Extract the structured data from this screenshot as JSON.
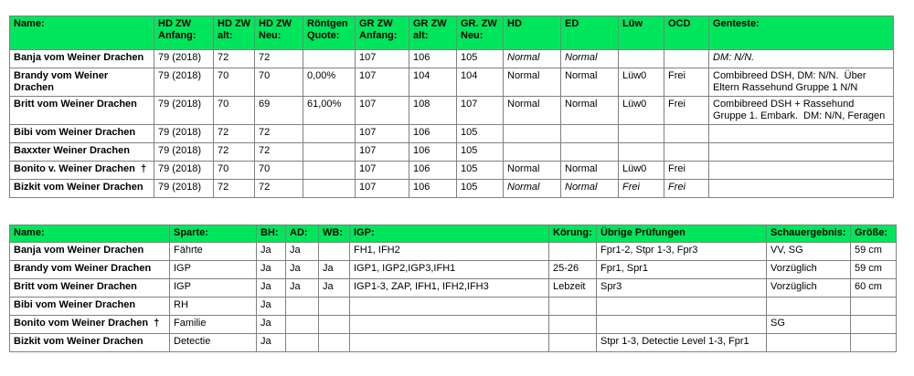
{
  "colors": {
    "header_bg": "#00E65C",
    "border": "#808080",
    "text": "#000000"
  },
  "table1": {
    "columns": [
      "Name:",
      "HD ZW Anfang:",
      "HD ZW alt:",
      "HD ZW Neu:",
      "Röntgen Quote:",
      "GR ZW Anfang:",
      "GR ZW alt:",
      "GR. ZW Neu:",
      "HD",
      "ED",
      "Lüw",
      "OCD",
      "Genteste:"
    ],
    "rows": [
      {
        "cells": [
          "Banja vom Weiner Drachen",
          "79 (2018)",
          "72",
          "72",
          "",
          "107",
          "106",
          "105",
          "Normal",
          "Normal",
          "",
          "",
          "DM: N/N."
        ],
        "italic": [
          8,
          9,
          12
        ]
      },
      {
        "cells": [
          "Brandy vom Weiner Drachen",
          "79 (2018)",
          "70",
          "70",
          "0,00%",
          "107",
          "104",
          "104",
          "Normal",
          "Normal",
          "Lüw0",
          "Frei",
          "Combibreed DSH, DM: N/N.  Über Eltern Rassehund Gruppe 1 N/N"
        ],
        "italic": []
      },
      {
        "cells": [
          "Britt vom Weiner Drachen",
          "79 (2018)",
          "70",
          "69",
          "61,00%",
          "107",
          "108",
          "107",
          "Normal",
          "Normal",
          "Lüw0",
          "Frei",
          "Combibreed DSH + Rassehund Gruppe 1. Embark.  DM: N/N, Feragen"
        ],
        "italic": []
      },
      {
        "cells": [
          "Bibi vom Weiner Drachen",
          "79 (2018)",
          "72",
          "72",
          "",
          "107",
          "106",
          "105",
          "",
          "",
          "",
          "",
          ""
        ],
        "italic": []
      },
      {
        "cells": [
          "Baxxter Weiner Drachen",
          "79 (2018)",
          "72",
          "72",
          "",
          "107",
          "106",
          "105",
          "",
          "",
          "",
          "",
          ""
        ],
        "italic": []
      },
      {
        "cells": [
          "Bonito v. Weiner Drachen  †",
          "79 (2018)",
          "70",
          "70",
          "",
          "107",
          "106",
          "105",
          "Normal",
          "Normal",
          "Lüw0",
          "Frei",
          ""
        ],
        "italic": []
      },
      {
        "cells": [
          "Bizkit vom Weiner Drachen",
          "79 (2018)",
          "72",
          "72",
          "",
          "107",
          "106",
          "105",
          "Normal",
          "Normal",
          "Frei",
          "Frei",
          ""
        ],
        "italic": [
          8,
          9,
          10,
          11
        ]
      }
    ]
  },
  "table2": {
    "columns": [
      "Name:",
      "Sparte:",
      "BH:",
      "AD:",
      "WB:",
      "IGP:",
      "Körung:",
      "Übrige Prüfungen",
      "Schauergebnis:",
      "Größe:"
    ],
    "rows": [
      {
        "cells": [
          "Banja vom Weiner Drachen",
          "Fährte",
          "Ja",
          "Ja",
          "",
          "FH1, IFH2",
          "",
          "Fpr1-2, Stpr 1-3, Fpr3",
          "VV, SG",
          "59 cm"
        ],
        "italic": []
      },
      {
        "cells": [
          "Brandy vom Weiner Drachen",
          "IGP",
          "Ja",
          "Ja",
          "Ja",
          "IGP1, IGP2,IGP3,IFH1",
          "25-26",
          "Fpr1, Spr1",
          "Vorzüglich",
          "59 cm"
        ],
        "italic": []
      },
      {
        "cells": [
          "Britt vom Weiner Drachen",
          "IGP",
          "Ja",
          "Ja",
          "Ja",
          "IGP1-3, ZAP, IFH1, IFH2,IFH3",
          "Lebzeit",
          "Spr3",
          "Vorzüglich",
          "60 cm"
        ],
        "italic": []
      },
      {
        "cells": [
          "Bibi vom Weiner Drachen",
          "RH",
          "Ja",
          "",
          "",
          "",
          "",
          "",
          "",
          ""
        ],
        "italic": []
      },
      {
        "cells": [
          "Bonito vom Weiner Drachen  †",
          "Familie",
          "Ja",
          "",
          "",
          "",
          "",
          "",
          "SG",
          ""
        ],
        "italic": []
      },
      {
        "cells": [
          "Bizkit vom Weiner Drachen",
          "Detectie",
          "Ja",
          "",
          "",
          "",
          "",
          "Stpr 1-3, Detectie Level 1-3, Fpr1",
          "",
          ""
        ],
        "italic": []
      }
    ]
  }
}
